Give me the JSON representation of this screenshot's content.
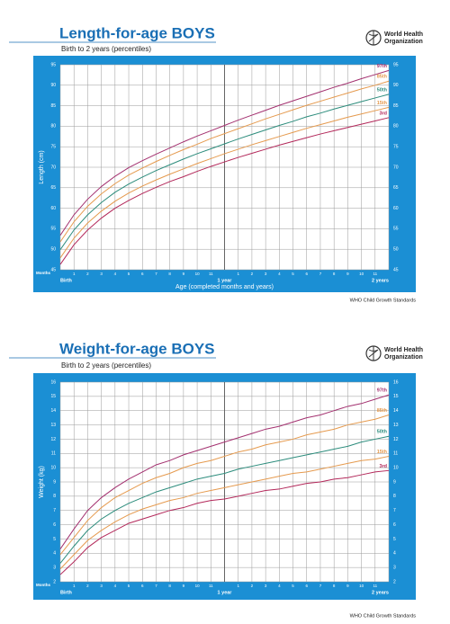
{
  "header": {
    "org_lines": [
      "World Health",
      "Organization"
    ]
  },
  "chart_data": [
    {
      "type": "line",
      "title": "Length-for-age BOYS",
      "subtitle": "Birth to 2 years (percentiles)",
      "ylabel": "Length (cm)",
      "xlabel": "Age (completed months and years)",
      "months_label": "Months",
      "source": "WHO Child Growth Standards",
      "x": [
        0,
        1,
        2,
        3,
        4,
        5,
        6,
        7,
        8,
        9,
        10,
        11,
        12,
        13,
        14,
        15,
        16,
        17,
        18,
        19,
        20,
        21,
        22,
        23,
        24
      ],
      "xlim": [
        0,
        24
      ],
      "xticks": [
        {
          "value": 0,
          "label": "Birth"
        },
        1,
        2,
        3,
        4,
        5,
        6,
        7,
        8,
        9,
        10,
        11,
        {
          "value": 12,
          "label": "1 year"
        },
        {
          "value": 13,
          "label": "1"
        },
        {
          "value": 14,
          "label": "2"
        },
        {
          "value": 15,
          "label": "3"
        },
        {
          "value": 16,
          "label": "4"
        },
        {
          "value": 17,
          "label": "5"
        },
        {
          "value": 18,
          "label": "6"
        },
        {
          "value": 19,
          "label": "7"
        },
        {
          "value": 20,
          "label": "8"
        },
        {
          "value": 21,
          "label": "9"
        },
        {
          "value": 22,
          "label": "10"
        },
        {
          "value": 23,
          "label": "11"
        },
        {
          "value": 24,
          "label": "2 years"
        }
      ],
      "ylim": [
        45,
        95
      ],
      "yticks": [
        45,
        50,
        55,
        60,
        65,
        70,
        75,
        80,
        85,
        90,
        95
      ],
      "grid": true,
      "series": [
        {
          "name": "97th",
          "color": "#a3306f",
          "values": [
            53.4,
            58.4,
            62.2,
            65.3,
            67.8,
            69.9,
            71.6,
            73.2,
            74.7,
            76.2,
            77.6,
            78.9,
            80.2,
            81.5,
            82.7,
            83.9,
            85.1,
            86.2,
            87.3,
            88.4,
            89.5,
            90.5,
            91.6,
            92.6,
            93.6
          ]
        },
        {
          "name": "85th",
          "color": "#e59a4e",
          "values": [
            51.8,
            56.7,
            60.5,
            63.5,
            66.0,
            68.1,
            69.8,
            71.4,
            72.9,
            74.3,
            75.6,
            77.0,
            78.2,
            79.4,
            80.6,
            81.8,
            82.9,
            84.0,
            85.1,
            86.1,
            87.1,
            88.1,
            89.1,
            90.0,
            91.0
          ]
        },
        {
          "name": "50th",
          "color": "#2c8c7c",
          "values": [
            49.9,
            54.7,
            58.4,
            61.4,
            63.9,
            65.9,
            67.6,
            69.2,
            70.6,
            72.0,
            73.3,
            74.5,
            75.7,
            76.9,
            78.0,
            79.1,
            80.2,
            81.2,
            82.3,
            83.2,
            84.2,
            85.1,
            86.0,
            86.9,
            87.8
          ]
        },
        {
          "name": "15th",
          "color": "#e59a4e",
          "values": [
            47.9,
            52.7,
            56.4,
            59.3,
            61.7,
            63.7,
            65.4,
            66.9,
            68.3,
            69.6,
            70.9,
            72.1,
            73.3,
            74.4,
            75.5,
            76.5,
            77.5,
            78.5,
            79.5,
            80.4,
            81.3,
            82.2,
            83.0,
            83.8,
            84.6
          ]
        },
        {
          "name": "3rd",
          "color": "#b3285a",
          "values": [
            46.3,
            51.1,
            54.7,
            57.6,
            60.0,
            61.9,
            63.6,
            65.1,
            66.5,
            67.7,
            69.0,
            70.2,
            71.3,
            72.4,
            73.4,
            74.4,
            75.4,
            76.3,
            77.2,
            78.1,
            78.9,
            79.7,
            80.5,
            81.3,
            82.1
          ]
        }
      ]
    },
    {
      "type": "line",
      "title": "Weight-for-age BOYS",
      "subtitle": "Birth to 2 years (percentiles)",
      "ylabel": "Weight (kg)",
      "months_label": "Months",
      "source": "WHO Child Growth Standards",
      "x": [
        0,
        1,
        2,
        3,
        4,
        5,
        6,
        7,
        8,
        9,
        10,
        11,
        12,
        13,
        14,
        15,
        16,
        17,
        18,
        19,
        20,
        21,
        22,
        23,
        24
      ],
      "xlim": [
        0,
        24
      ],
      "xticks": [
        {
          "value": 0,
          "label": "Birth"
        },
        1,
        2,
        3,
        4,
        5,
        6,
        7,
        8,
        9,
        10,
        11,
        {
          "value": 12,
          "label": "1 year"
        },
        {
          "value": 13,
          "label": "1"
        },
        {
          "value": 14,
          "label": "2"
        },
        {
          "value": 15,
          "label": "3"
        },
        {
          "value": 16,
          "label": "4"
        },
        {
          "value": 17,
          "label": "5"
        },
        {
          "value": 18,
          "label": "6"
        },
        {
          "value": 19,
          "label": "7"
        },
        {
          "value": 20,
          "label": "8"
        },
        {
          "value": 21,
          "label": "9"
        },
        {
          "value": 22,
          "label": "10"
        },
        {
          "value": 23,
          "label": "11"
        },
        {
          "value": 24,
          "label": "2 years"
        }
      ],
      "ylim": [
        2,
        16
      ],
      "yticks": [
        2,
        3,
        4,
        5,
        6,
        7,
        8,
        9,
        10,
        11,
        12,
        13,
        14,
        15,
        16
      ],
      "grid": true,
      "series": [
        {
          "name": "97th",
          "color": "#a3306f",
          "values": [
            4.3,
            5.7,
            7.0,
            7.9,
            8.6,
            9.2,
            9.7,
            10.2,
            10.5,
            10.9,
            11.2,
            11.5,
            11.8,
            12.1,
            12.4,
            12.7,
            12.9,
            13.2,
            13.5,
            13.7,
            14.0,
            14.3,
            14.5,
            14.8,
            15.1
          ]
        },
        {
          "name": "85th",
          "color": "#e59a4e",
          "values": [
            3.9,
            5.1,
            6.3,
            7.2,
            7.9,
            8.4,
            8.9,
            9.3,
            9.6,
            10.0,
            10.3,
            10.5,
            10.8,
            11.1,
            11.3,
            11.6,
            11.8,
            12.0,
            12.3,
            12.5,
            12.7,
            13.0,
            13.2,
            13.4,
            13.7
          ]
        },
        {
          "name": "50th",
          "color": "#2c8c7c",
          "values": [
            3.3,
            4.5,
            5.6,
            6.4,
            7.0,
            7.5,
            7.9,
            8.3,
            8.6,
            8.9,
            9.2,
            9.4,
            9.6,
            9.9,
            10.1,
            10.3,
            10.5,
            10.7,
            10.9,
            11.1,
            11.3,
            11.5,
            11.8,
            12.0,
            12.2
          ]
        },
        {
          "name": "15th",
          "color": "#e59a4e",
          "values": [
            2.9,
            3.9,
            4.9,
            5.6,
            6.2,
            6.7,
            7.1,
            7.4,
            7.7,
            7.9,
            8.2,
            8.4,
            8.6,
            8.8,
            9.0,
            9.2,
            9.4,
            9.6,
            9.7,
            9.9,
            10.1,
            10.3,
            10.5,
            10.6,
            10.8
          ]
        },
        {
          "name": "3rd",
          "color": "#b3285a",
          "values": [
            2.5,
            3.4,
            4.4,
            5.1,
            5.6,
            6.1,
            6.4,
            6.7,
            7.0,
            7.2,
            7.5,
            7.7,
            7.8,
            8.0,
            8.2,
            8.4,
            8.5,
            8.7,
            8.9,
            9.0,
            9.2,
            9.3,
            9.5,
            9.7,
            9.8
          ]
        }
      ]
    }
  ]
}
